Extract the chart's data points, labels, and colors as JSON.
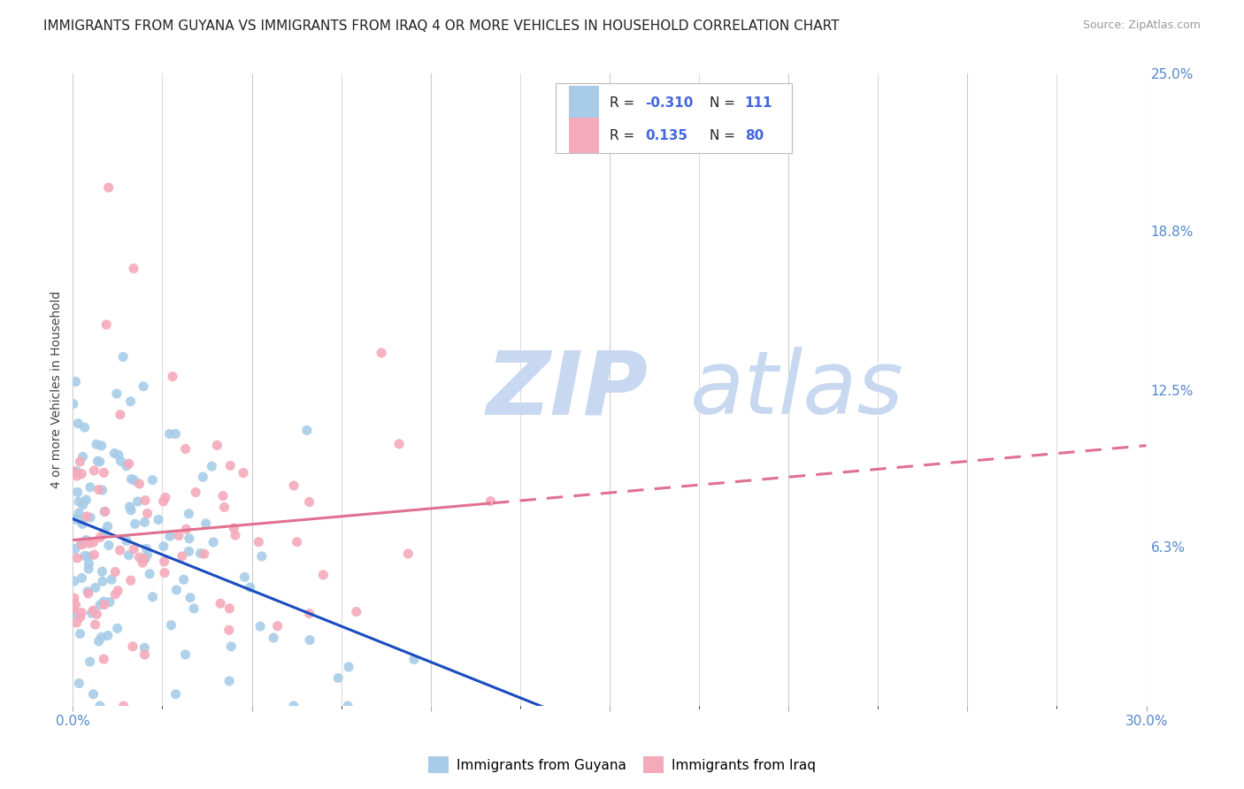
{
  "title": "IMMIGRANTS FROM GUYANA VS IMMIGRANTS FROM IRAQ 4 OR MORE VEHICLES IN HOUSEHOLD CORRELATION CHART",
  "source": "Source: ZipAtlas.com",
  "ylabel": "4 or more Vehicles in Household",
  "xlim": [
    0.0,
    0.3
  ],
  "ylim": [
    0.0,
    0.25
  ],
  "right_yticks": [
    0.0,
    0.063,
    0.125,
    0.188,
    0.25
  ],
  "right_yticklabels": [
    "",
    "6.3%",
    "12.5%",
    "18.8%",
    "25.0%"
  ],
  "guyana_color": "#a8cce8",
  "iraq_color": "#f4aabb",
  "guyana_line_color": "#1a4cc0",
  "iraq_line_color": "#e07090",
  "guyana_R": -0.31,
  "guyana_N": 111,
  "iraq_R": 0.135,
  "iraq_N": 80,
  "value_color": "#4466dd",
  "watermark_zip_color": "#c8d8f0",
  "watermark_atlas_color": "#c8d8f0",
  "grid_color": "#cccccc",
  "title_fontsize": 11,
  "tick_label_color": "#5588cc",
  "background_color": "#ffffff",
  "legend_edge_color": "#bbbbbb"
}
